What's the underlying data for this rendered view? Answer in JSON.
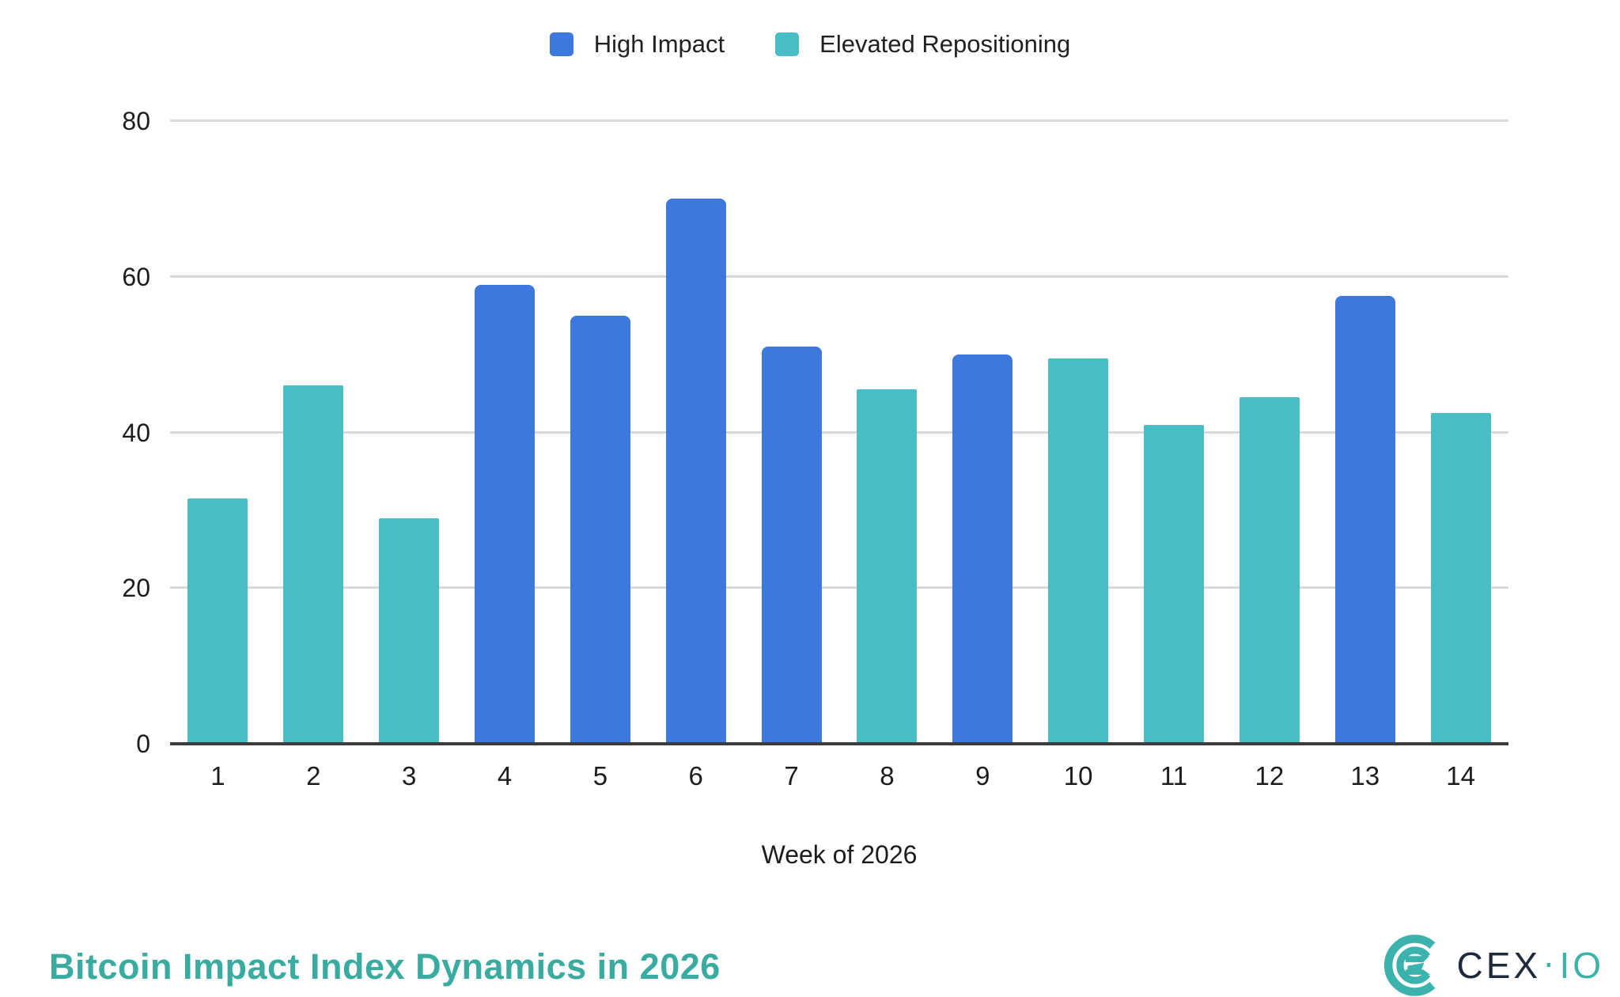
{
  "legend": {
    "items": [
      {
        "label": "High Impact",
        "color": "#3d78dd"
      },
      {
        "label": "Elevated Repositioning",
        "color": "#49bdc6"
      }
    ]
  },
  "chart_data": {
    "type": "bar",
    "title": "Bitcoin Impact Index Dynamics in 2026",
    "xlabel": "Week of 2026",
    "ylabel": "",
    "ylim": [
      0,
      80
    ],
    "yticks": [
      0,
      20,
      40,
      60,
      80
    ],
    "grid": true,
    "legend_position": "top-center",
    "categories": [
      "1",
      "2",
      "3",
      "4",
      "5",
      "6",
      "7",
      "8",
      "9",
      "10",
      "11",
      "12",
      "13",
      "14"
    ],
    "series_names": [
      "High Impact",
      "Elevated Repositioning"
    ],
    "series_colors": {
      "High Impact": "#3d78dd",
      "Elevated Repositioning": "#49bdc6"
    },
    "points": [
      {
        "week": "1",
        "value": 31.5,
        "series": "Elevated Repositioning"
      },
      {
        "week": "2",
        "value": 46,
        "series": "Elevated Repositioning"
      },
      {
        "week": "3",
        "value": 29,
        "series": "Elevated Repositioning"
      },
      {
        "week": "4",
        "value": 59,
        "series": "High Impact"
      },
      {
        "week": "5",
        "value": 55,
        "series": "High Impact"
      },
      {
        "week": "6",
        "value": 70,
        "series": "High Impact"
      },
      {
        "week": "7",
        "value": 51,
        "series": "High Impact"
      },
      {
        "week": "8",
        "value": 45.5,
        "series": "Elevated Repositioning"
      },
      {
        "week": "9",
        "value": 50,
        "series": "High Impact"
      },
      {
        "week": "10",
        "value": 49.5,
        "series": "Elevated Repositioning"
      },
      {
        "week": "11",
        "value": 41,
        "series": "Elevated Repositioning"
      },
      {
        "week": "12",
        "value": 44.5,
        "series": "Elevated Repositioning"
      },
      {
        "week": "13",
        "value": 57.5,
        "series": "High Impact"
      },
      {
        "week": "14",
        "value": 42.5,
        "series": "Elevated Repositioning"
      }
    ]
  },
  "footer": {
    "title_color": "#3aaba1",
    "logo": {
      "text_primary": "CEX",
      "separator": "·",
      "text_secondary": "IO",
      "navy": "#1e2b3c",
      "teal": "#3bb3ac"
    }
  },
  "colors": {
    "gridline": "#d9d9d9",
    "axis": "#3c3c3c",
    "tick_text": "#1c1c1c"
  }
}
